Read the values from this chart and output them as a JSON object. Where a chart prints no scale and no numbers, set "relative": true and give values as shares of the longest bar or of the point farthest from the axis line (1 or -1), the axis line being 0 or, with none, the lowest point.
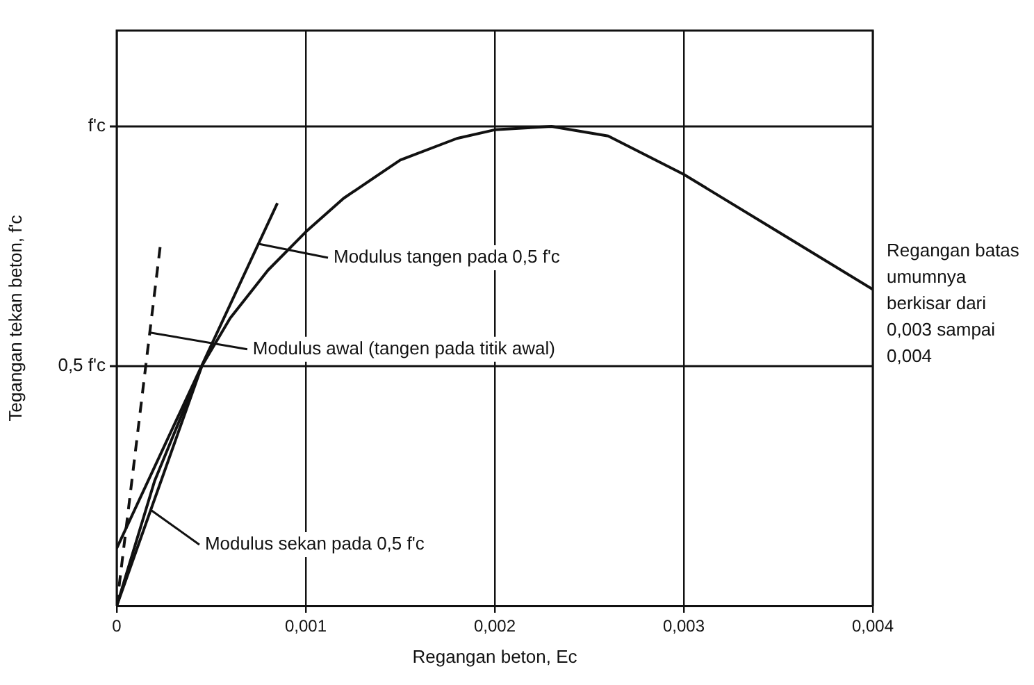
{
  "chart_data": {
    "type": "line",
    "xlabel": "Regangan beton, Ec",
    "ylabel": "Tegangan tekan beton, f'c",
    "xlim": [
      0,
      0.004
    ],
    "xticks": [
      {
        "value": 0,
        "label": "0"
      },
      {
        "value": 0.001,
        "label": "0,001"
      },
      {
        "value": 0.002,
        "label": "0,002"
      },
      {
        "value": 0.003,
        "label": "0,003"
      },
      {
        "value": 0.004,
        "label": "0,004"
      }
    ],
    "relative": true,
    "ref_lines": [
      {
        "axis": "y",
        "value": 0.5,
        "label": "0,5 f'c"
      },
      {
        "axis": "y",
        "value": 1,
        "label": "f'c"
      }
    ],
    "grid": "x",
    "legend": false,
    "marker": "none",
    "series": [
      {
        "color": "#111111",
        "line_style": "solid",
        "x": [
          0,
          0.0002,
          0.00045,
          0.0006,
          0.0008,
          0.001,
          0.0012,
          0.0015,
          0.0018,
          0.002,
          0.0023,
          0.0026,
          0.003,
          0.0035,
          0.004
        ],
        "values": [
          0,
          0.26,
          0.5,
          0.6,
          0.7,
          0.78,
          0.85,
          0.93,
          0.975,
          0.993,
          1,
          0.98,
          0.9,
          0.78,
          0.66
        ]
      },
      {
        "color": "#111111",
        "line_style": "solid",
        "x": [
          0,
          0.00085
        ],
        "values": [
          0.12,
          0.84
        ]
      },
      {
        "color": "#111111",
        "line_style": "dashed",
        "x": [
          0,
          0.00023
        ],
        "values": [
          0,
          0.75
        ]
      },
      {
        "color": "#111111",
        "line_style": "solid",
        "x": [
          0,
          0.00045
        ],
        "values": [
          0,
          0.5
        ]
      }
    ],
    "annotations": [
      {
        "text": "Modulus tangen pada 0,5 f'c",
        "x": 0.00075,
        "y": 0.755
      },
      {
        "text": "Modulus awal (tangen pada titik awal)",
        "x": 0.000176,
        "y": 0.57
      },
      {
        "text": "Modulus sekan pada 0,5 f'c",
        "x": 0.00018,
        "y": 0.2
      },
      "Regangan batas umumnya berkisar dari 0,003 sampai 0,004"
    ]
  }
}
